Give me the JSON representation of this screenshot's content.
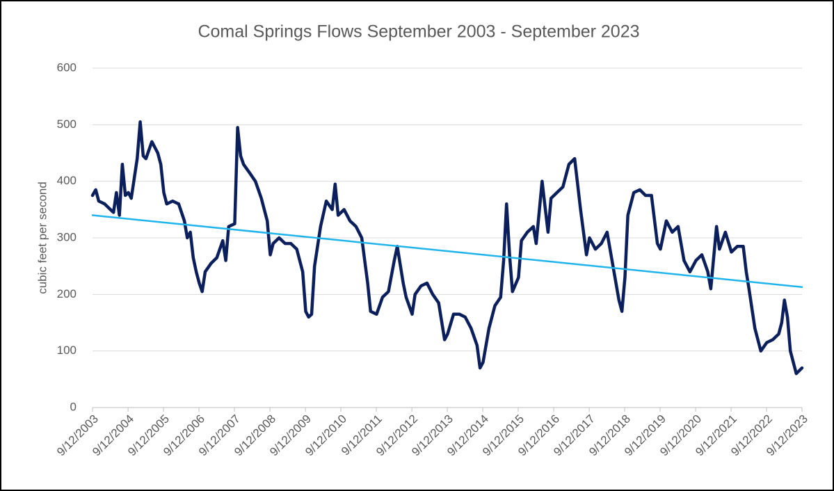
{
  "chart_data": {
    "type": "line",
    "title": "Comal Springs Flows September 2003 - September 2023",
    "y_label": "cubic feet per second",
    "xlim": [
      "9/12/2003",
      "9/12/2023"
    ],
    "xticks": [
      "9/12/2003",
      "9/12/2004",
      "9/12/2005",
      "9/12/2006",
      "9/12/2007",
      "9/12/2008",
      "9/12/2009",
      "9/12/2010",
      "9/12/2011",
      "9/12/2012",
      "9/12/2013",
      "9/12/2014",
      "9/12/2015",
      "9/12/2016",
      "9/12/2017",
      "9/12/2018",
      "9/12/2019",
      "9/12/2020",
      "9/12/2021",
      "9/12/2022",
      "9/12/2023"
    ],
    "ylim": [
      0,
      600
    ],
    "yticks": [
      0,
      100,
      200,
      300,
      400,
      500,
      600
    ],
    "grid": true,
    "series": [
      {
        "color": "#0b1f5c",
        "x": [
          "9/12/2003",
          "10/15/2003",
          "11/15/2003",
          "1/15/2004",
          "3/15/2004",
          "4/15/2004",
          "5/15/2004",
          "6/15/2004",
          "7/15/2004",
          "8/15/2004",
          "9/15/2004",
          "10/15/2004",
          "12/15/2004",
          "1/15/2005",
          "2/15/2005",
          "3/15/2005",
          "5/15/2005",
          "7/15/2005",
          "8/15/2005",
          "9/15/2005",
          "10/15/2005",
          "12/15/2005",
          "2/15/2006",
          "4/15/2006",
          "5/15/2006",
          "6/15/2006",
          "7/15/2006",
          "8/15/2006",
          "9/15/2006",
          "10/15/2006",
          "11/15/2006",
          "1/15/2007",
          "3/15/2007",
          "5/15/2007",
          "6/15/2007",
          "7/15/2007",
          "9/15/2007",
          "10/15/2007",
          "11/15/2007",
          "12/15/2007",
          "2/15/2008",
          "4/15/2008",
          "6/15/2008",
          "8/15/2008",
          "9/15/2008",
          "10/15/2008",
          "12/15/2008",
          "2/15/2009",
          "4/15/2009",
          "6/15/2009",
          "8/15/2009",
          "9/15/2009",
          "10/15/2009",
          "11/15/2009",
          "12/15/2009",
          "2/15/2010",
          "4/15/2010",
          "6/15/2010",
          "7/15/2010",
          "8/15/2010",
          "10/15/2010",
          "12/15/2010",
          "2/15/2011",
          "4/15/2011",
          "6/15/2011",
          "7/15/2011",
          "9/15/2011",
          "11/15/2011",
          "1/15/2012",
          "3/15/2012",
          "4/15/2012",
          "6/15/2012",
          "7/15/2012",
          "9/15/2012",
          "10/15/2012",
          "12/15/2012",
          "2/15/2013",
          "4/15/2013",
          "6/15/2013",
          "8/15/2013",
          "9/15/2013",
          "11/15/2013",
          "1/15/2014",
          "3/15/2014",
          "5/15/2014",
          "7/15/2014",
          "8/15/2014",
          "9/15/2014",
          "11/15/2014",
          "1/15/2015",
          "3/15/2015",
          "4/15/2015",
          "5/15/2015",
          "6/15/2015",
          "7/15/2015",
          "9/15/2015",
          "10/15/2015",
          "12/15/2015",
          "2/15/2016",
          "3/15/2016",
          "5/15/2016",
          "7/15/2016",
          "8/15/2016",
          "10/15/2016",
          "12/15/2016",
          "2/15/2017",
          "4/15/2017",
          "6/15/2017",
          "8/15/2017",
          "9/15/2017",
          "11/15/2017",
          "1/15/2018",
          "3/15/2018",
          "5/15/2018",
          "7/15/2018",
          "8/15/2018",
          "9/15/2018",
          "10/15/2018",
          "12/15/2018",
          "2/15/2019",
          "4/15/2019",
          "6/15/2019",
          "8/15/2019",
          "9/15/2019",
          "11/15/2019",
          "1/15/2020",
          "3/15/2020",
          "5/15/2020",
          "7/15/2020",
          "9/15/2020",
          "11/15/2020",
          "1/15/2021",
          "2/15/2021",
          "4/15/2021",
          "5/15/2021",
          "7/15/2021",
          "9/15/2021",
          "11/15/2021",
          "1/15/2022",
          "2/15/2022",
          "3/15/2022",
          "5/15/2022",
          "7/15/2022",
          "9/15/2022",
          "11/15/2022",
          "1/15/2023",
          "2/15/2023",
          "3/15/2023",
          "4/15/2023",
          "5/15/2023",
          "7/15/2023",
          "9/12/2023"
        ],
        "values": [
          375,
          385,
          365,
          360,
          350,
          345,
          380,
          340,
          430,
          375,
          380,
          370,
          440,
          505,
          445,
          440,
          470,
          450,
          430,
          380,
          360,
          365,
          360,
          330,
          300,
          310,
          265,
          240,
          220,
          205,
          240,
          255,
          265,
          295,
          260,
          320,
          325,
          495,
          445,
          430,
          415,
          400,
          370,
          330,
          270,
          290,
          300,
          290,
          290,
          280,
          240,
          170,
          160,
          165,
          250,
          320,
          365,
          350,
          395,
          340,
          350,
          330,
          320,
          300,
          220,
          170,
          165,
          195,
          205,
          260,
          285,
          220,
          195,
          165,
          200,
          215,
          220,
          200,
          185,
          120,
          130,
          165,
          165,
          160,
          140,
          110,
          70,
          80,
          140,
          180,
          195,
          260,
          360,
          270,
          205,
          230,
          295,
          310,
          320,
          290,
          400,
          310,
          370,
          380,
          390,
          430,
          440,
          350,
          270,
          300,
          280,
          290,
          310,
          250,
          190,
          170,
          230,
          340,
          380,
          385,
          375,
          375,
          290,
          280,
          330,
          310,
          320,
          260,
          240,
          260,
          270,
          240,
          210,
          320,
          280,
          310,
          275,
          285,
          285,
          240,
          210,
          140,
          100,
          115,
          120,
          130,
          150,
          190,
          160,
          100,
          60,
          70
        ]
      },
      {
        "color": "#1fb4ea",
        "x": [
          "9/12/2003",
          "9/12/2023"
        ],
        "values": [
          340,
          213
        ]
      }
    ]
  }
}
